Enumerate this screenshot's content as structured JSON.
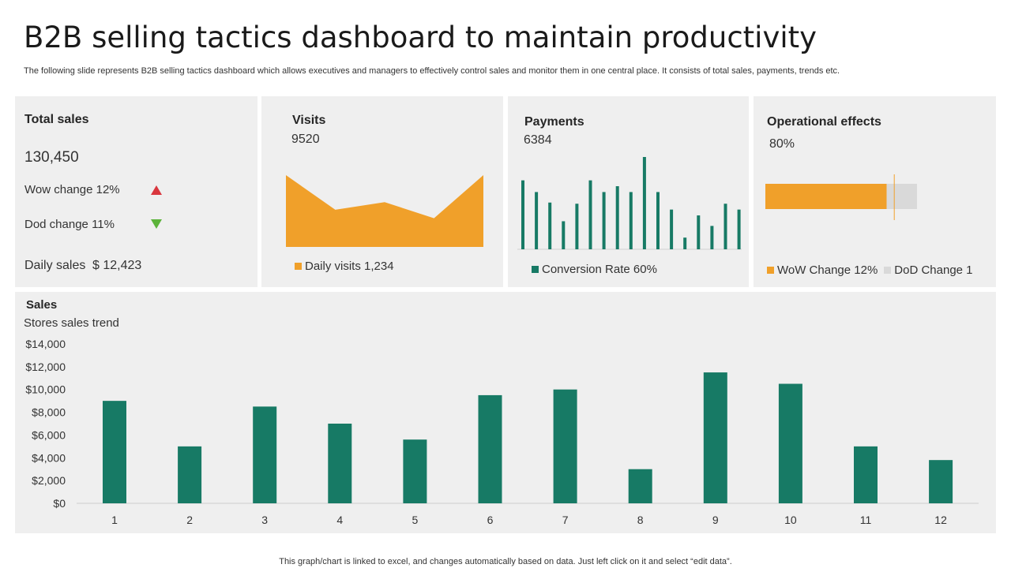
{
  "title": "B2B selling tactics dashboard to maintain productivity",
  "subtitle": "The following slide represents B2B selling tactics dashboard which allows executives and managers to effectively control sales and monitor them in one central place. It consists of total sales, payments, trends etc.",
  "colors": {
    "green": "#177a65",
    "orange": "#f0a02a",
    "red": "#d9363e",
    "lime": "#5cb33a",
    "grey": "#d9d9d9",
    "panel": "#efefef"
  },
  "total_sales": {
    "title": "Total sales",
    "value": "130,450",
    "wow_label": "Wow change 12%",
    "dod_label": "Dod change 11%",
    "daily_label": "Daily sales",
    "daily_value": "$ 12,423"
  },
  "visits": {
    "title": "Visits",
    "value": "9520",
    "legend": "Daily visits 1,234"
  },
  "payments": {
    "title": "Payments",
    "value": "6384",
    "legend": "Conversion Rate 60%"
  },
  "operational": {
    "title": "Operational effects",
    "value": "80%",
    "legend_wow": "WoW Change 12%",
    "legend_dod": "DoD Change 1"
  },
  "sales": {
    "title": "Sales",
    "subtitle": "Stores sales trend"
  },
  "footer": "This graph/chart is linked to excel, and changes automatically based on data. Just left click on it and select “edit data”.",
  "chart_data": [
    {
      "type": "area",
      "name": "visits",
      "x": [
        1,
        2,
        3,
        4,
        5
      ],
      "values": [
        85,
        44,
        53,
        34,
        85
      ],
      "series_name": "Daily visits 1,234"
    },
    {
      "type": "bar",
      "name": "payments",
      "x": [
        1,
        2,
        3,
        4,
        5,
        6,
        7,
        8,
        9,
        10,
        11,
        12,
        13,
        14,
        15,
        16,
        17
      ],
      "values": [
        59,
        49,
        40,
        24,
        39,
        59,
        49,
        54,
        49,
        79,
        49,
        34,
        10,
        29,
        20,
        39,
        34
      ],
      "series_name": "Conversion Rate 60%"
    },
    {
      "type": "bar",
      "name": "operational",
      "orientation": "horizontal",
      "series": [
        {
          "name": "WoW Change 12%",
          "values": [
            80
          ]
        },
        {
          "name": "DoD Change 1",
          "values": [
            20
          ]
        }
      ],
      "marker": 85
    },
    {
      "type": "bar",
      "name": "sales",
      "title": "Stores sales trend",
      "categories": [
        "1",
        "2",
        "3",
        "4",
        "5",
        "6",
        "7",
        "8",
        "9",
        "10",
        "11",
        "12"
      ],
      "values": [
        9000,
        5000,
        8500,
        7000,
        5600,
        9500,
        10000,
        3000,
        11500,
        10500,
        5000,
        3800
      ],
      "y_ticks": [
        "$0",
        "$2,000",
        "$4,000",
        "$6,000",
        "$8,000",
        "$10,000",
        "$12,000",
        "$14,000"
      ],
      "ylim": [
        0,
        14000
      ]
    }
  ]
}
